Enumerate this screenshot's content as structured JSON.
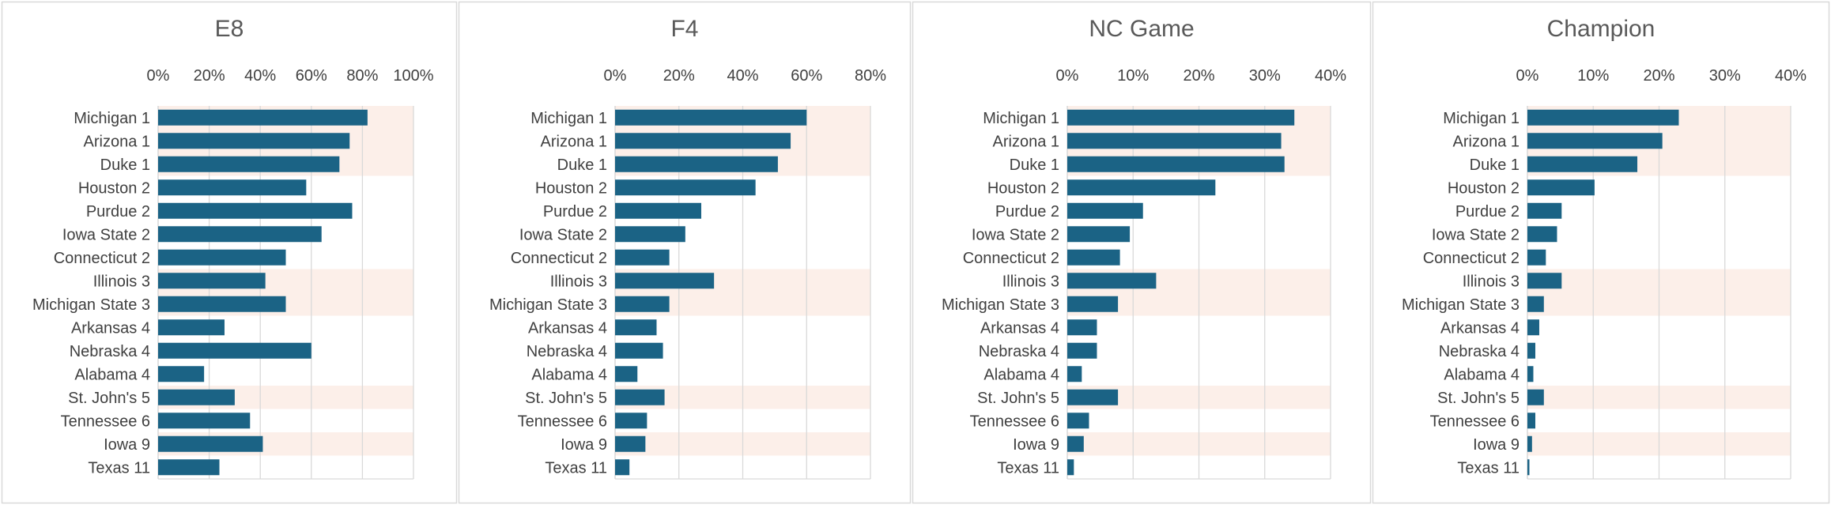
{
  "chart_data": [
    {
      "type": "bar",
      "title": "E8",
      "categories": [
        "Michigan 1",
        "Arizona 1",
        "Duke 1",
        "Houston 2",
        "Purdue 2",
        "Iowa State 2",
        "Connecticut 2",
        "Illinois 3",
        "Michigan State 3",
        "Arkansas 4",
        "Nebraska 4",
        "Alabama 4",
        "St. John's 5",
        "Tennessee 6",
        "Iowa 9",
        "Texas 11"
      ],
      "values": [
        0.82,
        0.75,
        0.71,
        0.58,
        0.76,
        0.64,
        0.5,
        0.42,
        0.5,
        0.26,
        0.6,
        0.18,
        0.3,
        0.36,
        0.41,
        0.24
      ],
      "xlim": [
        0,
        1.0
      ],
      "ticks": [
        "0%",
        "20%",
        "40%",
        "60%",
        "80%",
        "100%"
      ],
      "highlight_rows": [
        0,
        1,
        2,
        7,
        8,
        12,
        14
      ],
      "grid": true
    },
    {
      "type": "bar",
      "title": "F4",
      "categories": [
        "Michigan 1",
        "Arizona 1",
        "Duke 1",
        "Houston 2",
        "Purdue 2",
        "Iowa State 2",
        "Connecticut 2",
        "Illinois 3",
        "Michigan State 3",
        "Arkansas 4",
        "Nebraska 4",
        "Alabama 4",
        "St. John's 5",
        "Tennessee 6",
        "Iowa 9",
        "Texas 11"
      ],
      "values": [
        0.6,
        0.55,
        0.51,
        0.44,
        0.27,
        0.22,
        0.17,
        0.31,
        0.17,
        0.13,
        0.15,
        0.07,
        0.155,
        0.1,
        0.095,
        0.045
      ],
      "xlim": [
        0,
        0.8
      ],
      "ticks": [
        "0%",
        "20%",
        "40%",
        "60%",
        "80%"
      ],
      "highlight_rows": [
        0,
        1,
        2,
        7,
        8,
        12,
        14
      ],
      "grid": true
    },
    {
      "type": "bar",
      "title": "NC Game",
      "categories": [
        "Michigan 1",
        "Arizona 1",
        "Duke 1",
        "Houston 2",
        "Purdue 2",
        "Iowa State 2",
        "Connecticut 2",
        "Illinois 3",
        "Michigan State 3",
        "Arkansas 4",
        "Nebraska 4",
        "Alabama 4",
        "St. John's 5",
        "Tennessee 6",
        "Iowa 9",
        "Texas 11"
      ],
      "values": [
        0.345,
        0.325,
        0.33,
        0.225,
        0.115,
        0.095,
        0.08,
        0.135,
        0.077,
        0.045,
        0.045,
        0.022,
        0.077,
        0.033,
        0.025,
        0.01
      ],
      "xlim": [
        0,
        0.4
      ],
      "ticks": [
        "0%",
        "10%",
        "20%",
        "30%",
        "40%"
      ],
      "highlight_rows": [
        0,
        1,
        2,
        7,
        8,
        12,
        14
      ],
      "grid": true
    },
    {
      "type": "bar",
      "title": "Champion",
      "categories": [
        "Michigan 1",
        "Arizona 1",
        "Duke 1",
        "Houston 2",
        "Purdue 2",
        "Iowa State 2",
        "Connecticut 2",
        "Illinois 3",
        "Michigan State 3",
        "Arkansas 4",
        "Nebraska 4",
        "Alabama 4",
        "St. John's 5",
        "Tennessee 6",
        "Iowa 9",
        "Texas 11"
      ],
      "values": [
        0.23,
        0.205,
        0.167,
        0.102,
        0.052,
        0.045,
        0.028,
        0.052,
        0.025,
        0.018,
        0.012,
        0.009,
        0.025,
        0.012,
        0.007,
        0.003
      ],
      "xlim": [
        0,
        0.4
      ],
      "ticks": [
        "0%",
        "10%",
        "20%",
        "30%",
        "40%"
      ],
      "highlight_rows": [
        0,
        1,
        2,
        7,
        8,
        12,
        14
      ],
      "grid": true
    }
  ],
  "colors": {
    "bar": "#1b6385",
    "highlight_band": "#fcefe9",
    "grid": "#d9d9d9",
    "text": "#404040",
    "title": "#595959",
    "panel_border": "#d9d9d9"
  }
}
